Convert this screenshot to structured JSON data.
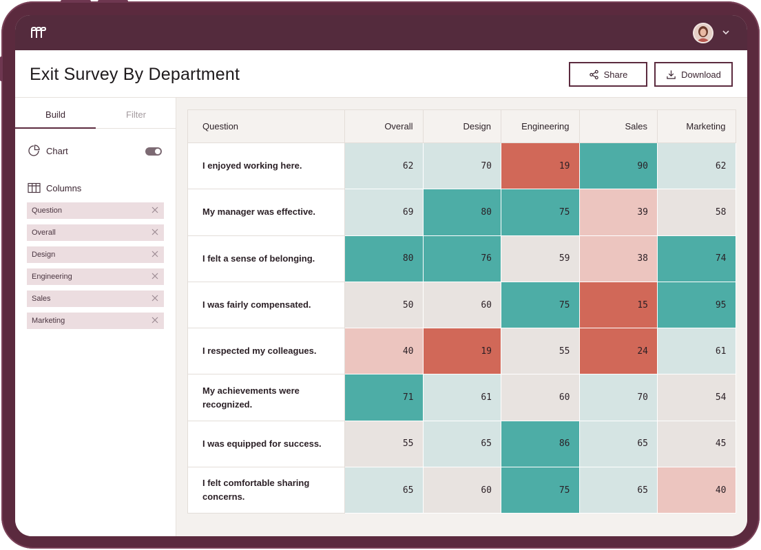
{
  "app": {
    "logo_icon": "brand-logo-icon",
    "user_menu_icon": "chevron-down-icon"
  },
  "header": {
    "title": "Exit Survey By Department",
    "share_label": "Share",
    "download_label": "Download"
  },
  "sidebar": {
    "tabs": [
      {
        "label": "Build",
        "active": true
      },
      {
        "label": "Filter",
        "active": false
      }
    ],
    "chart_label": "Chart",
    "chart_toggle_on": true,
    "columns_label": "Columns",
    "columns": [
      "Question",
      "Overall",
      "Design",
      "Engineering",
      "Sales",
      "Marketing"
    ]
  },
  "colors": {
    "brand": "#5b2a3e",
    "high": "#4dada6",
    "mid_high": "#d5e4e3",
    "neutral": "#e8e3e0",
    "mid_low": "#ecc5bf",
    "low": "#d16858"
  },
  "table": {
    "headers": [
      "Question",
      "Overall",
      "Design",
      "Engineering",
      "Sales",
      "Marketing"
    ],
    "rows": [
      {
        "question": "I enjoyed working here.",
        "values": [
          "62",
          "70",
          "19",
          "90",
          "62"
        ],
        "levels": [
          "mid_high",
          "mid_high",
          "low",
          "high",
          "mid_high"
        ]
      },
      {
        "question": "My manager was effective.",
        "values": [
          "69",
          "80",
          "75",
          "39",
          "58"
        ],
        "levels": [
          "mid_high",
          "high",
          "high",
          "mid_low",
          "neutral"
        ]
      },
      {
        "question": "I felt a sense of belonging.",
        "values": [
          "80",
          "76",
          "59",
          "38",
          "74"
        ],
        "levels": [
          "high",
          "high",
          "neutral",
          "mid_low",
          "high"
        ]
      },
      {
        "question": "I was fairly compensated.",
        "values": [
          "50",
          "60",
          "75",
          "15",
          "95"
        ],
        "levels": [
          "neutral",
          "neutral",
          "high",
          "low",
          "high"
        ]
      },
      {
        "question": "I respected my colleagues.",
        "values": [
          "40",
          "19",
          "55",
          "24",
          "61"
        ],
        "levels": [
          "mid_low",
          "low",
          "neutral",
          "low",
          "mid_high"
        ]
      },
      {
        "question": "My achievements were recognized.",
        "values": [
          "71",
          "61",
          "60",
          "70",
          "54"
        ],
        "levels": [
          "high",
          "mid_high",
          "neutral",
          "mid_high",
          "neutral"
        ]
      },
      {
        "question": "I was equipped for success.",
        "values": [
          "55",
          "65",
          "86",
          "65",
          "45"
        ],
        "levels": [
          "neutral",
          "mid_high",
          "high",
          "mid_high",
          "neutral"
        ]
      },
      {
        "question": "I felt comfortable sharing concerns.",
        "values": [
          "65",
          "60",
          "75",
          "65",
          "40"
        ],
        "levels": [
          "mid_high",
          "neutral",
          "high",
          "mid_high",
          "mid_low"
        ]
      }
    ]
  }
}
